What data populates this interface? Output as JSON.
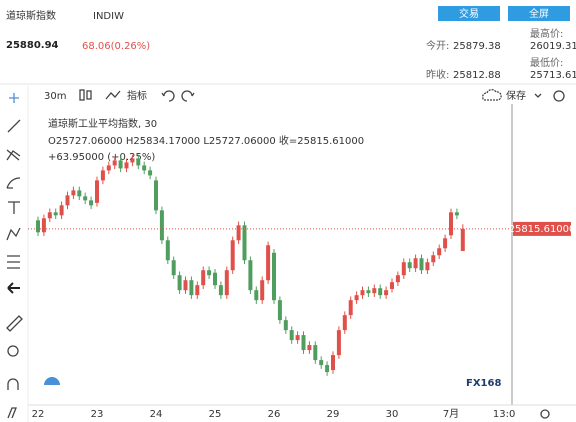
{
  "header": {
    "title": "道琼斯指数",
    "code": "INDIW",
    "buttons": [
      "交易",
      "全屏"
    ],
    "price": "25880.94",
    "change": "68.06(0.26%)",
    "stats": [
      {
        "label": "今开:",
        "value": "25879.38"
      },
      {
        "label": "最高价:",
        "value": "26019.31"
      },
      {
        "label": "昨收:",
        "value": "25812.88"
      },
      {
        "label": "最低价:",
        "value": "25713.61"
      }
    ]
  },
  "toolbar": {
    "interval": "30m",
    "indicators": "指标",
    "save": "保存"
  },
  "chart_data": {
    "type": "candlestick",
    "legend": {
      "name": "道琼斯工业平均指数, 30",
      "ohlc": "O25727.06000 H25834.17000 L25727.06000 收=25815.61000",
      "change": "+63.95000 (+0.25%)"
    },
    "up_color": "#e0504a",
    "down_color": "#4f9e5f",
    "ylim": [
      25130,
      26300
    ],
    "last_price": {
      "value": 25815.61,
      "label": "25815.61000"
    },
    "watermark": "FX168",
    "categories": [
      "22",
      null,
      null,
      null,
      null,
      null,
      null,
      null,
      null,
      null,
      "23",
      null,
      null,
      null,
      null,
      null,
      null,
      null,
      null,
      null,
      "24",
      null,
      null,
      null,
      null,
      null,
      null,
      null,
      null,
      null,
      "25",
      null,
      null,
      null,
      null,
      null,
      null,
      null,
      null,
      null,
      "26",
      null,
      null,
      null,
      null,
      null,
      null,
      null,
      null,
      null,
      "29",
      null,
      null,
      null,
      null,
      null,
      null,
      null,
      null,
      null,
      "30",
      null,
      null,
      null,
      null,
      null,
      null,
      null,
      null,
      null,
      "7月",
      null,
      null,
      null,
      null,
      null,
      null,
      null,
      null,
      "13:0"
    ],
    "open": [
      25850,
      25802,
      25858,
      25882,
      25870,
      25910,
      25950,
      25970,
      25946,
      25930,
      25920,
      26010,
      26050,
      26070,
      26090,
      26058,
      26082,
      26098,
      26070,
      26050,
      26010,
      25890,
      25770,
      25690,
      25630,
      25570,
      25610,
      25550,
      25590,
      25650,
      25640,
      25590,
      25550,
      25650,
      25770,
      25830,
      25690,
      25570,
      25530,
      25610,
      25720,
      25530,
      25450,
      25410,
      25370,
      25390,
      25330,
      25350,
      25290,
      25270,
      25250,
      25310,
      25410,
      25470,
      25530,
      25550,
      25570,
      25558,
      25578,
      25550,
      25575,
      25602,
      25630,
      25682,
      25658,
      25698,
      25650,
      25682,
      25710,
      25738,
      25790,
      25882,
      25727.06,
      null,
      null,
      null,
      null,
      null,
      null,
      null
    ],
    "high": [
      25865,
      25873,
      25897,
      25897,
      25925,
      25965,
      25985,
      25985,
      25961,
      25945,
      26025,
      26065,
      26085,
      26105,
      26105,
      26097,
      26113,
      26113,
      26085,
      26065,
      26025,
      25905,
      25785,
      25705,
      25645,
      25625,
      25625,
      25605,
      25665,
      25665,
      25655,
      25605,
      25665,
      25785,
      25845,
      25845,
      25705,
      25585,
      25625,
      25765,
      25735,
      25545,
      25465,
      25425,
      25405,
      25405,
      25365,
      25365,
      25305,
      25285,
      25325,
      25425,
      25485,
      25545,
      25565,
      25585,
      25585,
      25593,
      25593,
      25585,
      25617,
      25645,
      25697,
      25697,
      25713,
      25713,
      25697,
      25725,
      25753,
      25793,
      25897,
      25897,
      25834.17,
      null,
      null,
      null,
      null,
      null,
      null,
      null
    ],
    "low": [
      25787,
      25787,
      25843,
      25855,
      25855,
      25895,
      25935,
      25931,
      25915,
      25895,
      25905,
      25995,
      26035,
      26055,
      26043,
      26043,
      26067,
      26055,
      26035,
      26015,
      25875,
      25755,
      25675,
      25615,
      25555,
      25555,
      25535,
      25535,
      25575,
      25615,
      25575,
      25535,
      25535,
      25635,
      25755,
      25675,
      25555,
      25515,
      25515,
      25595,
      25515,
      25435,
      25395,
      25355,
      25355,
      25315,
      25315,
      25275,
      25255,
      25227,
      25235,
      25295,
      25395,
      25455,
      25515,
      25535,
      25543,
      25543,
      25535,
      25535,
      25560,
      25587,
      25615,
      25643,
      25643,
      25635,
      25635,
      25667,
      25695,
      25723,
      25775,
      25855,
      25727.06,
      null,
      null,
      null,
      null,
      null,
      null,
      null
    ],
    "close": [
      25802,
      25858,
      25882,
      25870,
      25910,
      25950,
      25970,
      25946,
      25930,
      25910,
      26010,
      26050,
      26070,
      26090,
      26058,
      26082,
      26098,
      26070,
      26050,
      26030,
      25890,
      25770,
      25690,
      25630,
      25570,
      25610,
      25550,
      25590,
      25650,
      25630,
      25590,
      25550,
      25650,
      25770,
      25830,
      25690,
      25570,
      25530,
      25610,
      25750,
      25530,
      25450,
      25410,
      25370,
      25390,
      25330,
      25350,
      25290,
      25270,
      25242,
      25310,
      25410,
      25470,
      25530,
      25550,
      25570,
      25558,
      25578,
      25550,
      25570,
      25602,
      25630,
      25682,
      25658,
      25698,
      25650,
      25682,
      25710,
      25738,
      25778,
      25882,
      25870,
      25815.61,
      null,
      null,
      null,
      null,
      null,
      null,
      null
    ]
  }
}
